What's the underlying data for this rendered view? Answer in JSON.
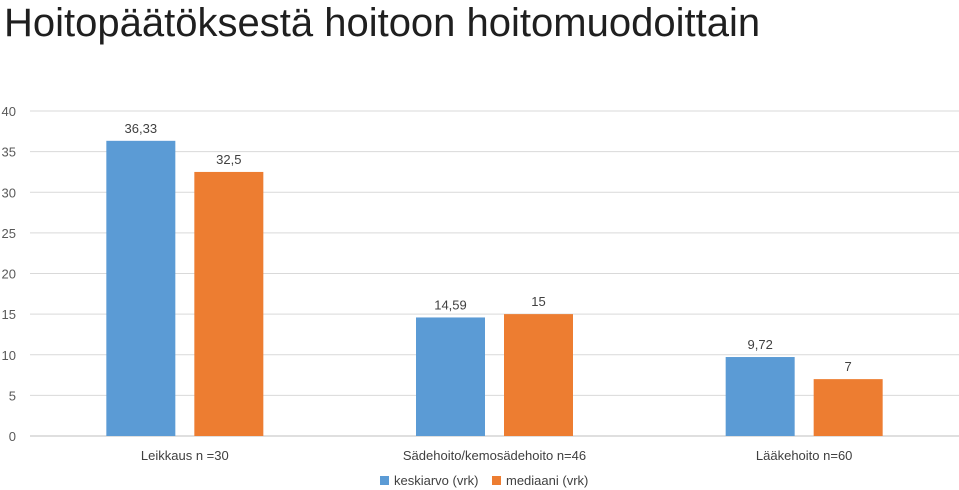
{
  "title": "Hoitopäätöksestä hoitoon hoitomuodoittain",
  "colors": {
    "keskiarvo": "#5b9bd5",
    "mediaani": "#ed7d31",
    "grid": "#d9d9d9"
  },
  "chart_data": {
    "type": "bar",
    "title": "Hoitopäätöksestä hoitoon hoitomuodoittain",
    "categories": [
      "Leikkaus n =30",
      "Sädehoito/kemosädehoito n=46",
      "Lääkehoito n=60"
    ],
    "series": [
      {
        "name": "keskiarvo (vrk)",
        "values": [
          36.33,
          14.59,
          9.72
        ],
        "labels": [
          "36,33",
          "14,59",
          "9,72"
        ]
      },
      {
        "name": "mediaani (vrk)",
        "values": [
          32.5,
          15,
          7
        ],
        "labels": [
          "32,5",
          "15",
          "7"
        ]
      }
    ],
    "yticks": [
      "0",
      "5",
      "10",
      "15",
      "20",
      "25",
      "30",
      "35",
      "40"
    ],
    "ylim": [
      0,
      40
    ],
    "grid": true,
    "legend": "bottom"
  }
}
